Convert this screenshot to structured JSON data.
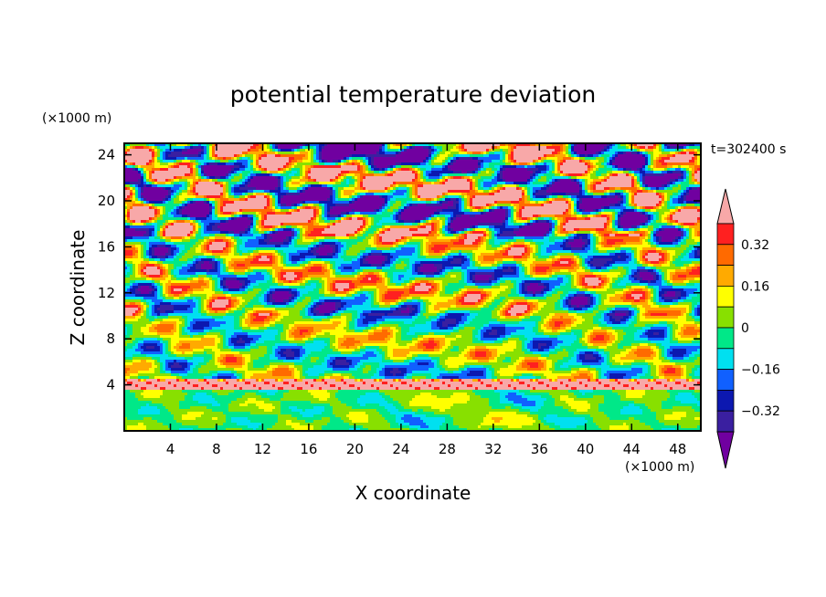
{
  "chart_data": {
    "type": "heatmap",
    "title": "potential temperature deviation",
    "xlabel": "X coordinate",
    "ylabel": "Z coordinate",
    "x_unit": "(×1000 m)",
    "y_unit": "(×1000 m)",
    "time_label": "t=302400 s",
    "xlim": [
      0,
      50
    ],
    "ylim": [
      0,
      25
    ],
    "x_ticks": [
      4,
      8,
      12,
      16,
      20,
      24,
      28,
      32,
      36,
      40,
      44,
      48
    ],
    "y_ticks": [
      4,
      8,
      12,
      16,
      20,
      24
    ],
    "colorbar": {
      "levels": [
        -0.4,
        -0.32,
        -0.24,
        -0.16,
        -0.08,
        0,
        0.08,
        0.16,
        0.24,
        0.32,
        0.4
      ],
      "labels": [
        {
          "value": 0.32,
          "text": "0.32"
        },
        {
          "value": 0.16,
          "text": "0.16"
        },
        {
          "value": 0,
          "text": "0"
        },
        {
          "value": -0.16,
          "text": "−0.16"
        },
        {
          "value": -0.32,
          "text": "−0.32"
        }
      ],
      "colors": [
        "#7000a0",
        "#3a1fa0",
        "#0c18b0",
        "#1060ff",
        "#00e0f0",
        "#00e888",
        "#88e000",
        "#ffff00",
        "#ffaa00",
        "#ff6a00",
        "#ff2020",
        "#f8a8a8"
      ],
      "extend": "both"
    }
  }
}
